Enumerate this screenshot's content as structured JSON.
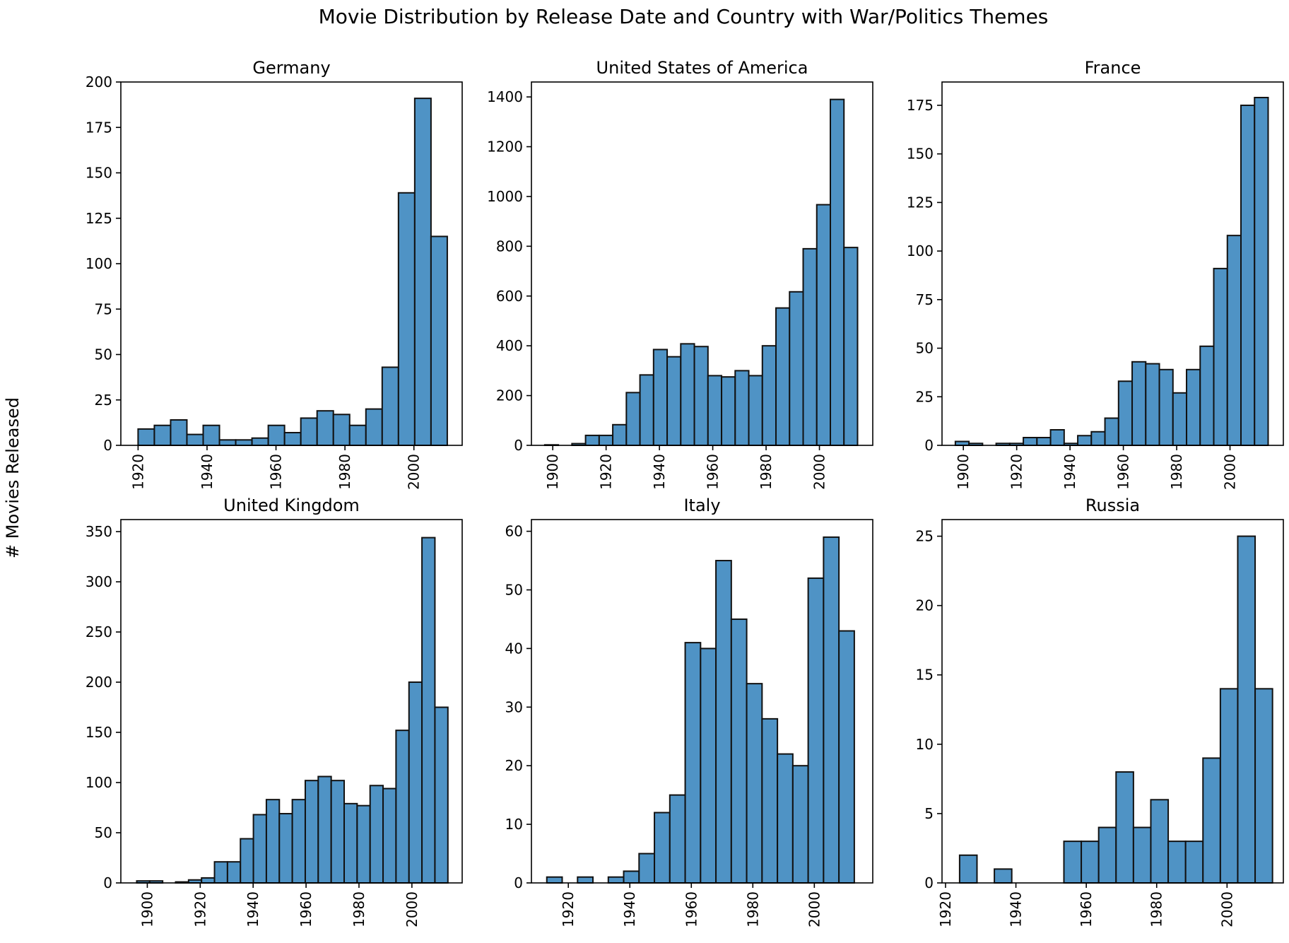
{
  "title": "Movie Distribution by Release Date and Country with War/Politics Themes",
  "ylabel": "# Movies Released",
  "colors": {
    "bar": "#4f93c5",
    "edge": "#111111"
  },
  "chart_data": [
    {
      "type": "bar",
      "title": "Germany",
      "bin_start": 1920,
      "bin_width": 4.72,
      "values": [
        9,
        11,
        14,
        6,
        11,
        3,
        3,
        4,
        11,
        7,
        15,
        19,
        17,
        11,
        20,
        43,
        139,
        191,
        115
      ],
      "xlim": [
        1915,
        2014
      ],
      "ylim": [
        0,
        200
      ],
      "xticks": [
        1920,
        1940,
        1960,
        1980,
        2000
      ],
      "yticks": [
        0,
        25,
        50,
        75,
        100,
        125,
        150,
        175,
        200
      ]
    },
    {
      "type": "bar",
      "title": "United States of America",
      "bin_start": 1897,
      "bin_width": 5.1,
      "values": [
        2,
        0,
        7,
        40,
        40,
        83,
        212,
        283,
        385,
        356,
        408,
        397,
        280,
        275,
        300,
        280,
        400,
        552,
        617,
        790,
        967,
        1390,
        795
      ],
      "xlim": [
        1892,
        2020
      ],
      "ylim": [
        0,
        1460
      ],
      "xticks": [
        1900,
        1920,
        1940,
        1960,
        1980,
        2000
      ],
      "yticks": [
        0,
        200,
        400,
        600,
        800,
        1000,
        1200,
        1400
      ]
    },
    {
      "type": "bar",
      "title": "France",
      "bin_start": 1897,
      "bin_width": 5.1,
      "values": [
        2,
        1,
        0,
        1,
        1,
        4,
        4,
        8,
        1,
        5,
        7,
        14,
        33,
        43,
        42,
        39,
        27,
        39,
        51,
        91,
        108,
        175,
        179
      ],
      "xlim": [
        1892,
        2020
      ],
      "ylim": [
        0,
        187
      ],
      "xticks": [
        1900,
        1920,
        1940,
        1960,
        1980,
        2000
      ],
      "yticks": [
        0,
        25,
        50,
        75,
        100,
        125,
        150,
        175
      ]
    },
    {
      "type": "bar",
      "title": "United Kingdom",
      "bin_start": 1896,
      "bin_width": 4.9,
      "values": [
        2,
        2,
        0,
        1,
        3,
        5,
        21,
        21,
        44,
        68,
        83,
        69,
        83,
        102,
        106,
        102,
        79,
        77,
        97,
        94,
        152,
        200,
        344,
        175
      ],
      "xlim": [
        1890,
        2019
      ],
      "ylim": [
        0,
        362
      ],
      "xticks": [
        1900,
        1920,
        1940,
        1960,
        1980,
        2000
      ],
      "yticks": [
        0,
        50,
        100,
        150,
        200,
        250,
        300,
        350
      ]
    },
    {
      "type": "bar",
      "title": "Italy",
      "bin_start": 1913,
      "bin_width": 5.0,
      "values": [
        1,
        0,
        1,
        0,
        1,
        2,
        5,
        12,
        15,
        41,
        40,
        55,
        45,
        34,
        28,
        22,
        20,
        52,
        59,
        43
      ],
      "xlim": [
        1908,
        2019
      ],
      "ylim": [
        0,
        62
      ],
      "xticks": [
        1920,
        1940,
        1960,
        1980,
        2000
      ],
      "yticks": [
        0,
        10,
        20,
        30,
        40,
        50,
        60
      ]
    },
    {
      "type": "bar",
      "title": "Russia",
      "bin_start": 1924,
      "bin_width": 4.94,
      "values": [
        2,
        0,
        1,
        0,
        0,
        0,
        3,
        3,
        4,
        8,
        4,
        6,
        3,
        3,
        9,
        14,
        25,
        14
      ],
      "xlim": [
        1919,
        2016
      ],
      "ylim": [
        0,
        26.2
      ],
      "xticks": [
        1920,
        1940,
        1960,
        1980,
        2000
      ],
      "yticks": [
        0,
        5,
        10,
        15,
        20,
        25
      ]
    }
  ]
}
